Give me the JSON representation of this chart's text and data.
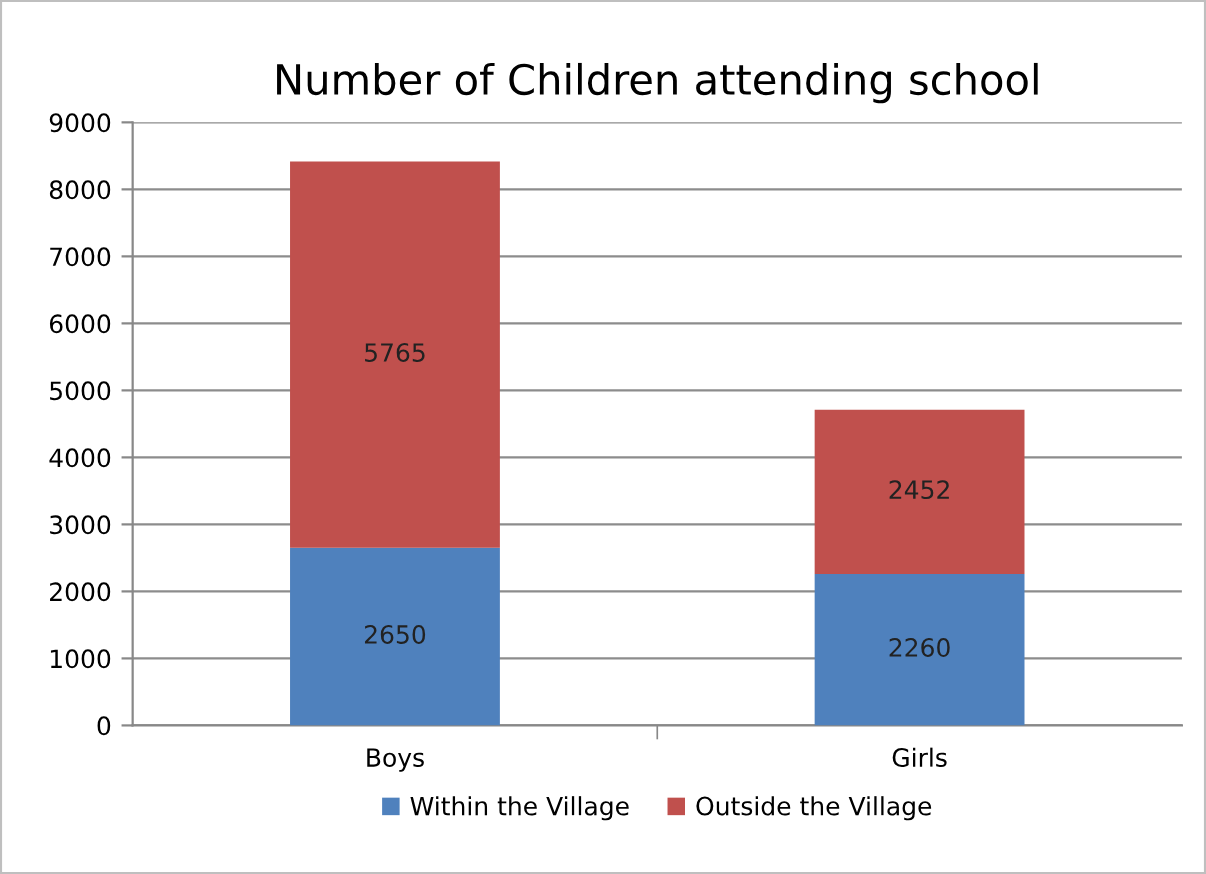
{
  "chart_data": {
    "type": "bar",
    "title": "Number of Children attending school",
    "categories": [
      "Boys",
      "Girls"
    ],
    "stacked": true,
    "series": [
      {
        "name": "Within the Village",
        "color": "#4f81bd",
        "values": [
          2650,
          2260
        ]
      },
      {
        "name": "Outside the Village",
        "color": "#c0504d",
        "values": [
          5765,
          2452
        ]
      }
    ],
    "ylim": [
      0,
      9000
    ],
    "yticks": [
      0,
      1000,
      2000,
      3000,
      4000,
      5000,
      6000,
      7000,
      8000,
      9000
    ],
    "grid": "y",
    "legend": "bottom",
    "data_labels": true
  }
}
